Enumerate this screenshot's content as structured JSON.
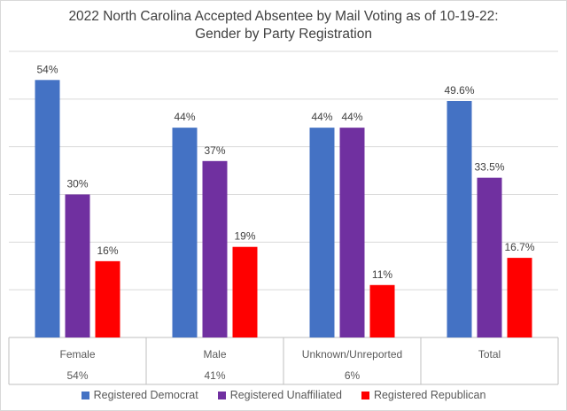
{
  "chart_data": {
    "type": "bar",
    "title": "2022 North Carolina Accepted Absentee by Mail Voting as of 10-19-22:",
    "subtitle": "Gender by Party Registration",
    "categories": [
      "Female",
      "Male",
      "Unknown/Unreported",
      "Total"
    ],
    "category_shares": [
      "54%",
      "41%",
      "6%",
      ""
    ],
    "series": [
      {
        "name": "Registered Democrat",
        "color": "#4472c4",
        "values": [
          54,
          44,
          44,
          49.6
        ],
        "labels": [
          "54%",
          "44%",
          "44%",
          "49.6%"
        ]
      },
      {
        "name": "Registered Unaffiliated",
        "color": "#7030a0",
        "values": [
          30,
          37,
          44,
          33.5
        ],
        "labels": [
          "30%",
          "37%",
          "44%",
          "33.5%"
        ]
      },
      {
        "name": "Registered Republican",
        "color": "#ff0000",
        "values": [
          16,
          19,
          11,
          16.7
        ],
        "labels": [
          "16%",
          "19%",
          "11%",
          "16.7%"
        ]
      }
    ],
    "ylim": [
      0,
      60
    ],
    "gridlines": true,
    "legend": "bottom"
  }
}
